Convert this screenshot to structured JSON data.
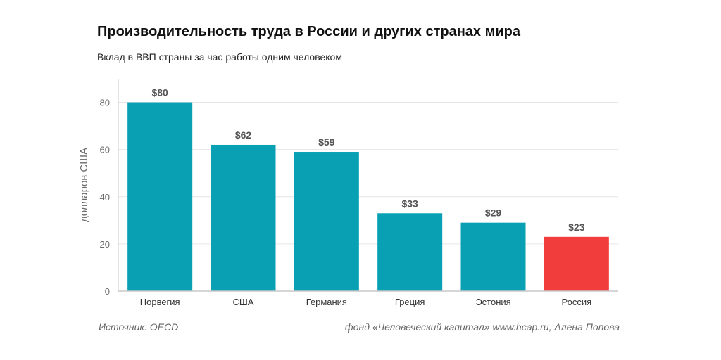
{
  "header": {
    "title": "Производительность труда в России и других странах мира",
    "subtitle": "Вклад в ВВП страны за час работы одним человеком"
  },
  "footer": {
    "source": "Источник: OECD",
    "credit": "фонд «Человеческий капитал» www.hcap.ru, Алена Попова"
  },
  "colors": {
    "bar": "#0aa0b4",
    "highlight": "#f23d3d",
    "grid": "#e6e6e6",
    "axis": "#c8c8c8",
    "tick": "#6a6a6a",
    "value_label": "#555555"
  },
  "chart_data": {
    "type": "bar",
    "title": "Производительность труда в России и других странах мира",
    "subtitle": "Вклад в ВВП страны за час работы одним человеком",
    "xlabel": "",
    "ylabel": "долларов США",
    "categories": [
      "Норвегия",
      "США",
      "Германия",
      "Греция",
      "Эстония",
      "Россия"
    ],
    "values": [
      80,
      62,
      59,
      33,
      29,
      23
    ],
    "value_labels": [
      "$80",
      "$62",
      "$59",
      "$33",
      "$29",
      "$23"
    ],
    "highlight_index": 5,
    "ylim": [
      0,
      90
    ],
    "yticks": [
      0,
      20,
      40,
      60,
      80
    ],
    "grid": true,
    "legend": "none"
  }
}
